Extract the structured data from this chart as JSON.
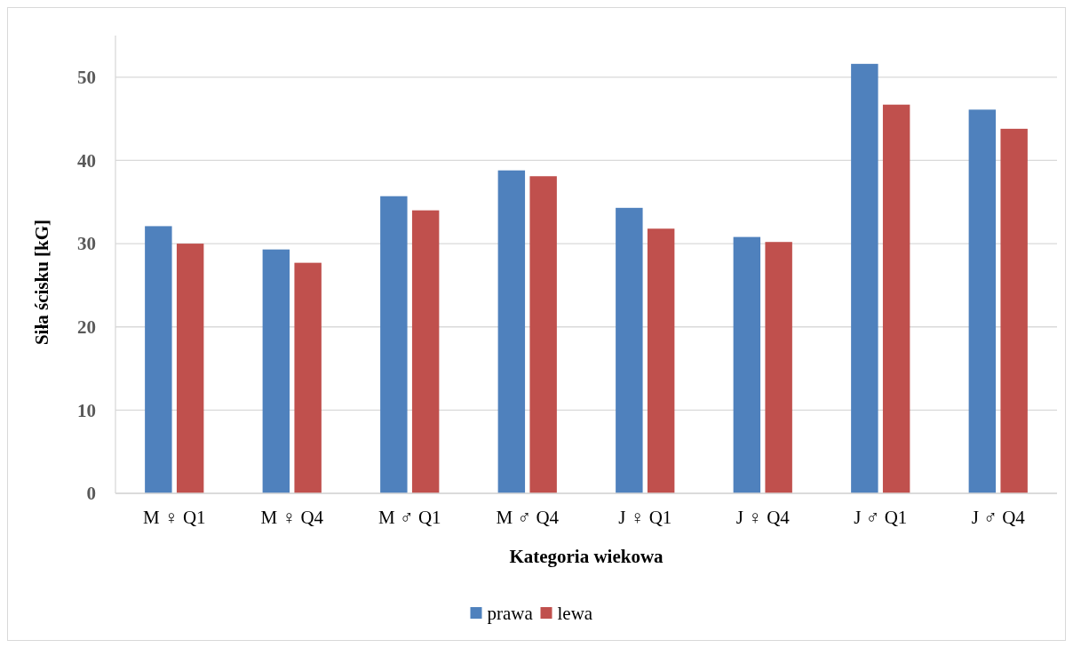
{
  "chart_data": {
    "type": "bar",
    "xlabel": "Kategoria wiekowa",
    "ylabel": "Siła ścisku [kG]",
    "categories": [
      "M ♀ Q1",
      "M ♀ Q4",
      "M ♂ Q1",
      "M ♂ Q4",
      "J ♀ Q1",
      "J ♀ Q4",
      "J ♂ Q1",
      "J ♂ Q4"
    ],
    "series": [
      {
        "name": "prawa",
        "color": "#4f81bd",
        "values": [
          32.1,
          29.3,
          35.7,
          38.8,
          34.3,
          30.8,
          51.6,
          46.1
        ]
      },
      {
        "name": "lewa",
        "color": "#c0504d",
        "values": [
          30.0,
          27.7,
          34.0,
          38.1,
          31.8,
          30.2,
          46.7,
          43.8
        ]
      }
    ],
    "ylim": [
      0,
      55
    ],
    "yticks": [
      0,
      10,
      20,
      30,
      40,
      50
    ],
    "grid": "y",
    "legend": "bottom"
  }
}
